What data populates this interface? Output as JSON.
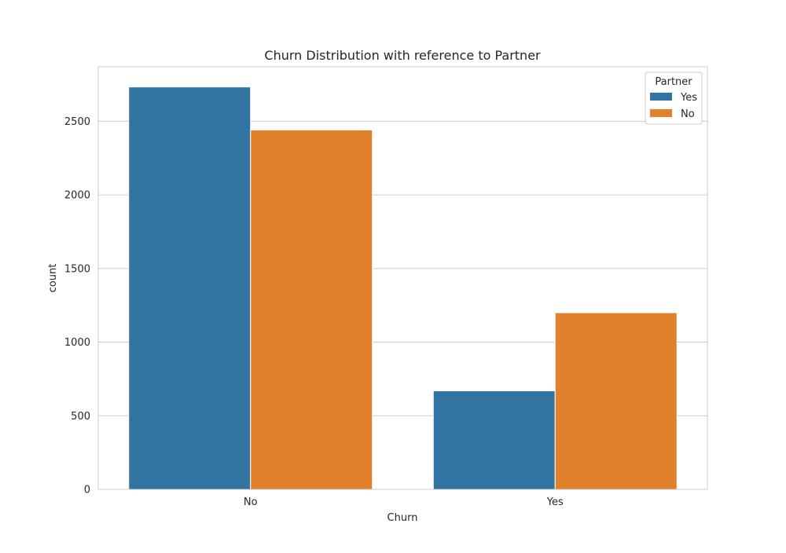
{
  "chart_data": {
    "type": "bar",
    "title": "Churn Distribution with reference to Partner",
    "xlabel": "Churn",
    "ylabel": "count",
    "categories": [
      "No",
      "Yes"
    ],
    "series": [
      {
        "name": "Yes",
        "values": [
          2733,
          669
        ],
        "color": "#3274a1"
      },
      {
        "name": "No",
        "values": [
          2441,
          1200
        ],
        "color": "#e1812c"
      }
    ],
    "ylim": [
      0,
      2870
    ],
    "yticks": [
      0,
      500,
      1000,
      1500,
      2000,
      2500
    ],
    "grid": true,
    "legend": {
      "title": "Partner",
      "placement": "top-right"
    }
  }
}
